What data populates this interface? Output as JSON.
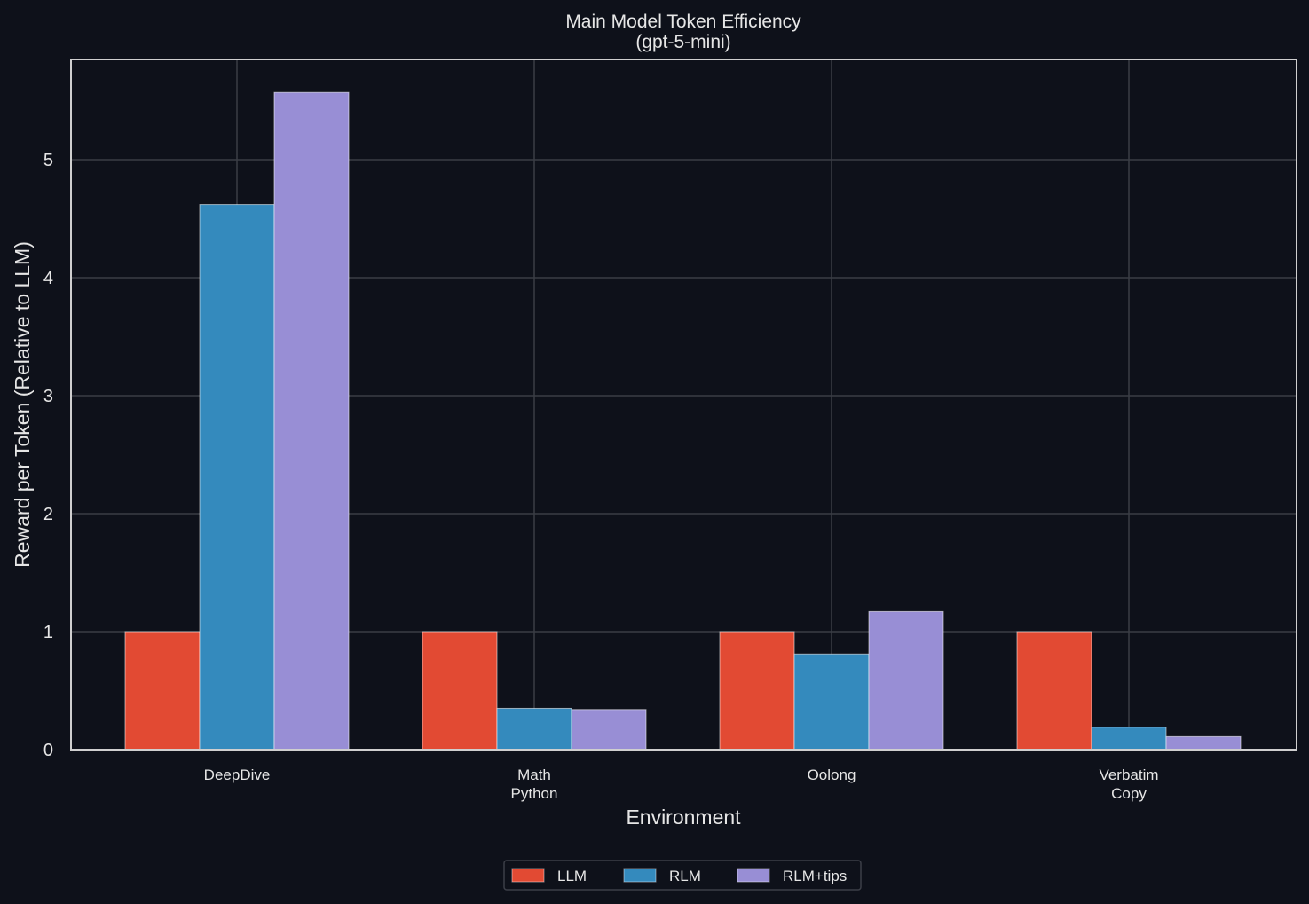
{
  "chart_data": {
    "type": "bar",
    "title": "Main Model Token Efficiency",
    "subtitle": "(gpt-5-mini)",
    "xlabel": "Environment",
    "ylabel": "Reward per Token (Relative to LLM)",
    "categories": [
      [
        "DeepDive"
      ],
      [
        "Math",
        "Python"
      ],
      [
        "Oolong"
      ],
      [
        "Verbatim",
        "Copy"
      ]
    ],
    "series": [
      {
        "name": "LLM",
        "color": "#e24a33",
        "values": [
          1.0,
          1.0,
          1.0,
          1.0
        ]
      },
      {
        "name": "RLM",
        "color": "#348abd",
        "values": [
          4.62,
          0.35,
          0.81,
          0.19
        ]
      },
      {
        "name": "RLM+tips",
        "color": "#988ed5",
        "values": [
          5.57,
          0.34,
          1.17,
          0.11
        ]
      }
    ],
    "ylim": [
      0,
      5.85
    ],
    "yticks": [
      "0",
      "1",
      "2",
      "3",
      "4",
      "5"
    ],
    "grid": true,
    "legend_position": "bottom-center",
    "background_color": "#0e111a"
  }
}
